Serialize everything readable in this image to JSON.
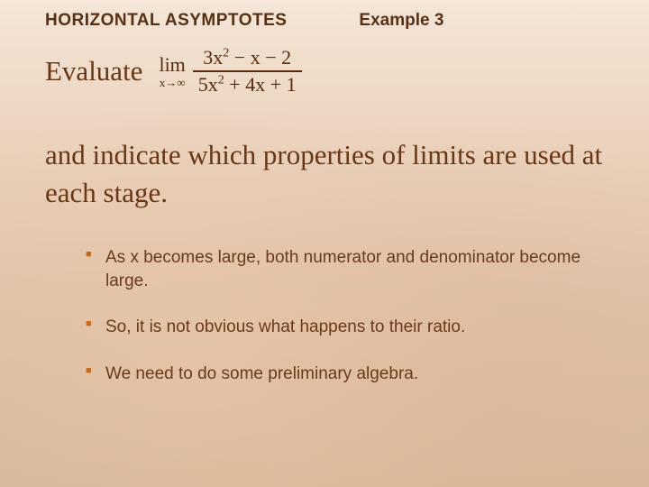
{
  "header": {
    "title": "HORIZONTAL ASYMPTOTES",
    "example": "Example 3"
  },
  "evaluate": {
    "label": "Evaluate",
    "lim_word": "lim",
    "lim_sub": "x→∞",
    "numerator_a": "3x",
    "numerator_exp": "2",
    "numerator_b": " − x − 2",
    "denominator_a": "5x",
    "denominator_exp": "2",
    "denominator_b": " + 4x + 1"
  },
  "body": {
    "line": "and indicate which properties of limits are used at each stage."
  },
  "bullets": {
    "0": "As x becomes large, both numerator and denominator become large.",
    "1": "So, it is not obvious what happens to their ratio.",
    "2": "We need to do some preliminary algebra."
  },
  "style": {
    "title_color": "#583015",
    "text_color": "#6a3614",
    "bullet_marker_color": "#c46a1e"
  }
}
